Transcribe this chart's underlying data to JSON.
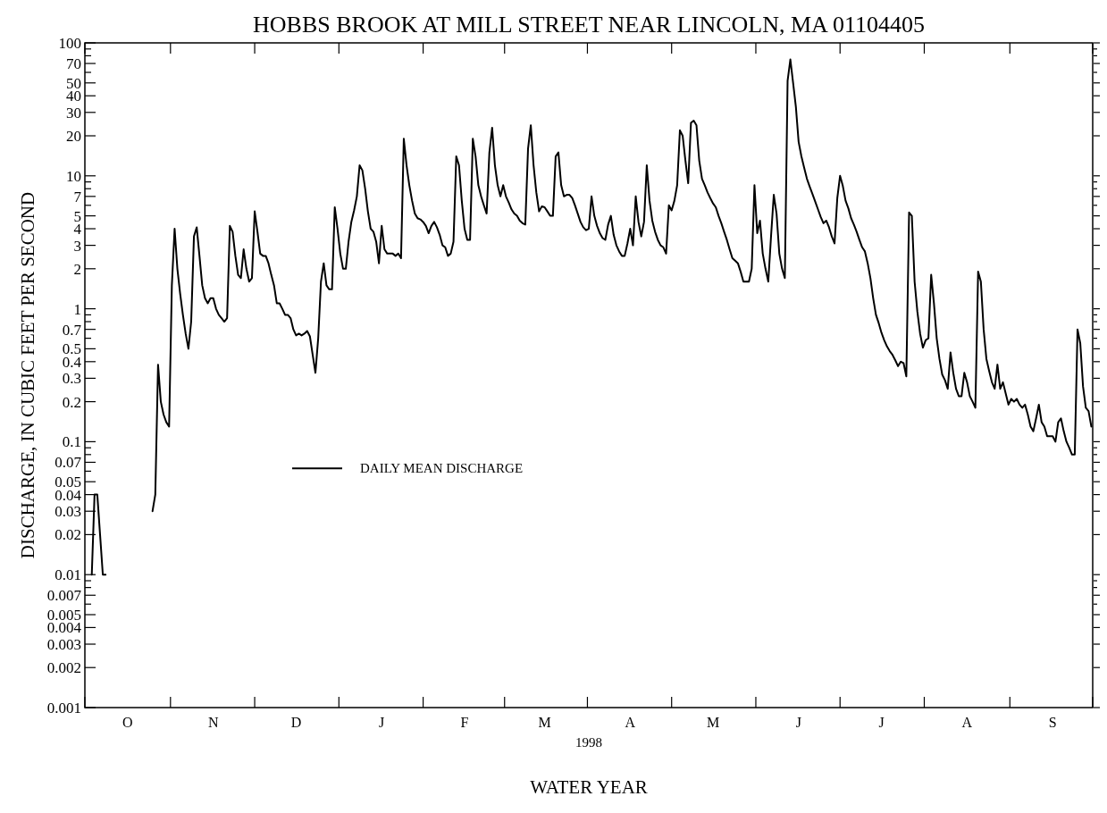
{
  "chart_data": {
    "type": "line",
    "title": "HOBBS BROOK AT MILL STREET NEAR LINCOLN, MA  01104405",
    "xlabel": "WATER YEAR",
    "ylabel": "DISCHARGE, IN CUBIC FEET PER SECOND",
    "annotations": [
      "1998"
    ],
    "log": "y",
    "legend": "bottom left",
    "line_style": "solid",
    "marker": "none",
    "categories": [
      null,
      null,
      null,
      null,
      null,
      null,
      null,
      null,
      null,
      null,
      null,
      null,
      null,
      null,
      null,
      "O",
      null,
      null,
      null,
      null,
      null,
      null,
      null,
      null,
      null,
      null,
      null,
      null,
      null,
      null,
      null,
      null,
      null,
      null,
      null,
      null,
      null,
      null,
      null,
      null,
      null,
      null,
      null,
      null,
      null,
      null,
      "N",
      null,
      null,
      null,
      null,
      null,
      null,
      null,
      null,
      null,
      null,
      null,
      null,
      null,
      null,
      null,
      null,
      null,
      null,
      null,
      null,
      null,
      null,
      null,
      null,
      null,
      null,
      null,
      null,
      null,
      "D",
      null,
      null,
      null,
      null,
      null,
      null,
      null,
      null,
      null,
      null,
      null,
      null,
      null,
      null,
      null,
      null,
      null,
      null,
      null,
      null,
      null,
      null,
      null,
      null,
      null,
      null,
      null,
      null,
      null,
      null,
      "J",
      null,
      null,
      null,
      null,
      null,
      null,
      null,
      null,
      null,
      null,
      null,
      null,
      null,
      null,
      null,
      null,
      null,
      null,
      null,
      null,
      null,
      null,
      null,
      null,
      null,
      null,
      null,
      null,
      null,
      "F",
      null,
      null,
      null,
      null,
      null,
      null,
      null,
      null,
      null,
      null,
      null,
      null,
      null,
      null,
      null,
      null,
      null,
      null,
      null,
      null,
      null,
      null,
      null,
      null,
      null,
      null,
      null,
      null,
      "M",
      null,
      null,
      null,
      null,
      null,
      null,
      null,
      null,
      null,
      null,
      null,
      null,
      null,
      null,
      null,
      null,
      null,
      null,
      null,
      null,
      null,
      null,
      null,
      null,
      null,
      null,
      null,
      null,
      null,
      null,
      "A",
      null,
      null,
      null,
      null,
      null,
      null,
      null,
      null,
      null,
      null,
      null,
      null,
      null,
      null,
      null,
      null,
      null,
      null,
      null,
      null,
      null,
      null,
      null,
      null,
      null,
      null,
      null,
      null,
      null,
      "M",
      null,
      null,
      null,
      null,
      null,
      null,
      null,
      null,
      null,
      null,
      null,
      null,
      null,
      null,
      null,
      null,
      null,
      null,
      null,
      null,
      null,
      null,
      null,
      null,
      null,
      null,
      null,
      null,
      null,
      null,
      "J",
      null,
      null,
      null,
      null,
      null,
      null,
      null,
      null,
      null,
      null,
      null,
      null,
      null,
      null,
      null,
      null,
      null,
      null,
      null,
      null,
      null,
      null,
      null,
      null,
      null,
      null,
      null,
      null,
      null,
      "J",
      null,
      null,
      null,
      null,
      null,
      null,
      null,
      null,
      null,
      null,
      null,
      null,
      null,
      null,
      null,
      null,
      null,
      null,
      null,
      null,
      null,
      null,
      null,
      null,
      null,
      null,
      null,
      null,
      null,
      null,
      "A",
      null,
      null,
      null,
      null,
      null,
      null,
      null,
      null,
      null,
      null,
      null,
      null,
      null,
      null,
      null,
      null,
      null,
      null,
      null,
      null,
      null,
      null,
      null,
      null,
      null,
      null,
      null,
      null,
      null,
      null,
      "S",
      null,
      null,
      null,
      null,
      null,
      null,
      null,
      null,
      null,
      null,
      null,
      null,
      null,
      null
    ],
    "ylim": [
      0.001,
      100
    ],
    "yticks": [
      0.001,
      0.002,
      0.003,
      0.004,
      0.005,
      {
        "value": 0.006,
        "label": null
      },
      0.007,
      {
        "value": 0.008,
        "label": null
      },
      {
        "value": 0.009,
        "label": null
      },
      0.01,
      0.02,
      0.03,
      0.04,
      0.05,
      {
        "value": 0.06,
        "label": null
      },
      0.07,
      {
        "value": 0.08,
        "label": null
      },
      {
        "value": 0.09,
        "label": null
      },
      0.1,
      0.2,
      0.3,
      0.4,
      0.5,
      {
        "value": 0.6,
        "label": null
      },
      0.7,
      {
        "value": 0.8,
        "label": null
      },
      {
        "value": 0.9,
        "label": null
      },
      1,
      2,
      3,
      4,
      5,
      {
        "value": 6,
        "label": null
      },
      7,
      {
        "value": 8,
        "label": null
      },
      {
        "value": 9,
        "label": null
      },
      10,
      20,
      30,
      40,
      50,
      {
        "value": 60,
        "label": null
      },
      70,
      {
        "value": 80,
        "label": null
      },
      {
        "value": 90,
        "label": null
      },
      100
    ],
    "series": [
      {
        "name": "DAILY MEAN DISCHARGE",
        "color": "#000000",
        "values": [
          null,
          null,
          0.01,
          0.04,
          0.04,
          0.02,
          0.01,
          0.01,
          null,
          null,
          null,
          null,
          null,
          null,
          null,
          null,
          null,
          null,
          null,
          null,
          null,
          null,
          null,
          null,
          0.03,
          0.04,
          0.38,
          0.2,
          0.16,
          0.14,
          0.13,
          1.5,
          4.0,
          2.0,
          1.3,
          0.9,
          0.65,
          0.5,
          0.8,
          3.5,
          4.1,
          2.5,
          1.5,
          1.2,
          1.1,
          1.2,
          1.2,
          1.0,
          0.9,
          0.85,
          0.8,
          0.85,
          4.2,
          3.8,
          2.5,
          1.8,
          1.7,
          2.8,
          2.0,
          1.6,
          1.7,
          5.4,
          3.8,
          2.6,
          2.5,
          2.5,
          2.2,
          1.8,
          1.5,
          1.1,
          1.1,
          1.0,
          0.9,
          0.9,
          0.85,
          0.7,
          0.63,
          0.65,
          0.63,
          0.65,
          0.68,
          0.62,
          0.45,
          0.33,
          0.6,
          1.6,
          2.2,
          1.5,
          1.4,
          1.4,
          5.8,
          4.0,
          2.6,
          2.0,
          2.0,
          3.2,
          4.5,
          5.5,
          7.0,
          12,
          11,
          8,
          5.4,
          4.0,
          3.8,
          3.2,
          2.2,
          4.2,
          2.8,
          2.6,
          2.6,
          2.6,
          2.5,
          2.6,
          2.4,
          19,
          12,
          8.5,
          6.5,
          5.2,
          4.8,
          4.7,
          4.5,
          4.2,
          3.7,
          4.2,
          4.5,
          4.1,
          3.6,
          3.0,
          2.9,
          2.5,
          2.6,
          3.2,
          14,
          12,
          6.5,
          4.0,
          3.3,
          3.3,
          19,
          14,
          8.5,
          7,
          6,
          5.2,
          15,
          23,
          12,
          8.5,
          7.0,
          8.5,
          7.0,
          6.3,
          5.6,
          5.2,
          5.0,
          4.6,
          4.4,
          4.3,
          16,
          24,
          12,
          7.5,
          5.4,
          5.9,
          5.8,
          5.4,
          5.0,
          5.0,
          14,
          15,
          8.5,
          7,
          7.2,
          7.2,
          6.8,
          6,
          5.2,
          4.5,
          4.1,
          3.9,
          4.0,
          7.0,
          5.0,
          4.2,
          3.7,
          3.4,
          3.3,
          4.3,
          5.0,
          3.6,
          3.0,
          2.7,
          2.5,
          2.5,
          3.1,
          4.0,
          3.0,
          7.0,
          4.5,
          3.5,
          4.5,
          12,
          6.5,
          4.6,
          3.8,
          3.3,
          3.0,
          2.9,
          2.6,
          6.0,
          5.5,
          6.5,
          8.5,
          22,
          20,
          13,
          8.8,
          25,
          26,
          24,
          13,
          9.5,
          8.5,
          7.5,
          6.8,
          6.2,
          5.8,
          5.0,
          4.4,
          3.8,
          3.3,
          2.8,
          2.4,
          2.3,
          2.2,
          1.9,
          1.6,
          1.6,
          1.6,
          2.0,
          8.5,
          3.7,
          4.6,
          2.6,
          2.0,
          1.6,
          3.5,
          7.2,
          5.2,
          2.6,
          2.0,
          1.7,
          52,
          75,
          50,
          33,
          18,
          14,
          11.5,
          9.5,
          8.3,
          7.3,
          6.4,
          5.6,
          4.9,
          4.4,
          4.6,
          4.1,
          3.5,
          3.1,
          6.8,
          10,
          8.4,
          6.5,
          5.7,
          4.8,
          4.3,
          3.8,
          3.3,
          2.9,
          2.7,
          2.2,
          1.7,
          1.2,
          0.9,
          0.78,
          0.66,
          0.58,
          0.52,
          0.48,
          0.45,
          0.41,
          0.37,
          0.4,
          0.39,
          0.31,
          5.3,
          5.0,
          1.6,
          0.95,
          0.65,
          0.51,
          0.58,
          0.6,
          1.8,
          1.1,
          0.6,
          0.42,
          0.32,
          0.29,
          0.25,
          0.47,
          0.33,
          0.25,
          0.22,
          0.22,
          0.33,
          0.28,
          0.22,
          0.2,
          0.18,
          1.9,
          1.6,
          0.7,
          0.42,
          0.34,
          0.28,
          0.25,
          0.38,
          0.25,
          0.28,
          0.23,
          0.19,
          0.21,
          0.2,
          0.21,
          0.19,
          0.18,
          0.19,
          0.16,
          0.13,
          0.12,
          0.15,
          0.19,
          0.14,
          0.13,
          0.11,
          0.11,
          0.11,
          0.1,
          0.14,
          0.15,
          0.12,
          0.1,
          0.09,
          0.08,
          0.08,
          0.7,
          0.55,
          0.26,
          0.18,
          0.17,
          0.13
        ]
      }
    ]
  }
}
